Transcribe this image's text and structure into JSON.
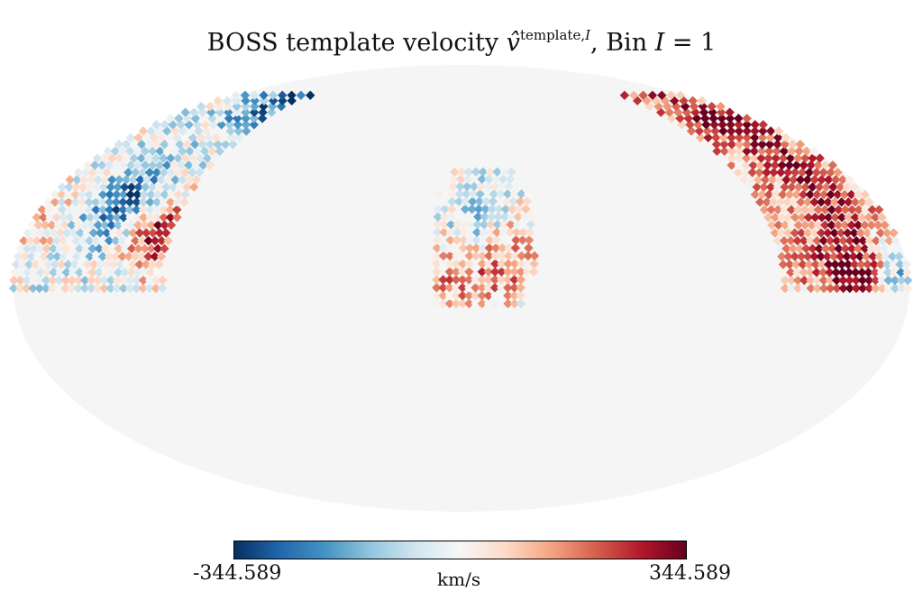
{
  "title": {
    "prefix": "BOSS template velocity ",
    "symbol": "v̂",
    "superscript_text": "template,",
    "superscript_italic": "I",
    "suffix": ", Bin ",
    "bin_symbol": "I",
    "bin_value": " = 1"
  },
  "colorbar": {
    "min_label": "-344.589",
    "max_label": "344.589",
    "unit_label": "km/s",
    "min": -344.589,
    "max": 344.589,
    "colormap": [
      "#053061",
      "#2166ac",
      "#4393c3",
      "#92c5de",
      "#d1e5f0",
      "#f7f7f7",
      "#fddbc7",
      "#f4a582",
      "#d6604d",
      "#b2182b",
      "#67001f"
    ]
  },
  "chart_data": {
    "type": "heatmap",
    "projection": "mollweide",
    "title": "BOSS template velocity v̂^{template,I}, Bin I = 1",
    "unit": "km/s",
    "value_range": [
      -344.589,
      344.589
    ],
    "background_color": "#f5f5f5",
    "regions": [
      {
        "ra_range": [
          -120,
          -180
        ],
        "dec_range": [
          0,
          72
        ],
        "mean": -30,
        "hot_spots": [
          {
            "ra": -147,
            "dec": 28,
            "v": -240
          },
          {
            "ra": -123,
            "dec": 70,
            "v": -320
          },
          {
            "ra": -126,
            "dec": 18,
            "v": 300
          },
          {
            "ra": -177,
            "dec": 22,
            "v": 110
          }
        ]
      },
      {
        "ra_range": [
          -10,
          30
        ],
        "dec_range": [
          -5,
          40
        ],
        "mean": 0,
        "hot_spots": [
          {
            "ra": 17,
            "dec": 11,
            "v": 230
          },
          {
            "ra": 9,
            "dec": 21,
            "v": -170
          },
          {
            "ra": -3,
            "dec": 4,
            "v": 140
          }
        ]
      },
      {
        "ra_range": [
          130,
          180
        ],
        "dec_range": [
          0,
          72
        ],
        "mean": 90,
        "hot_spots": [
          {
            "ra": 158,
            "dec": 8,
            "v": 320
          },
          {
            "ra": 156,
            "dec": 58,
            "v": 260
          },
          {
            "ra": 160,
            "dec": 35,
            "v": 200
          },
          {
            "ra": 175,
            "dec": 3,
            "v": -230
          }
        ]
      }
    ]
  }
}
